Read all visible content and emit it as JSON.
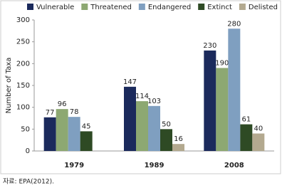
{
  "chart_data": {
    "type": "bar",
    "categories": [
      "1979",
      "1989",
      "2008"
    ],
    "series": [
      {
        "name": "Vulnerable",
        "color": "#1b2a5c",
        "values": [
          77,
          147,
          230
        ]
      },
      {
        "name": "Threatened",
        "color": "#8da872",
        "values": [
          96,
          114,
          190
        ]
      },
      {
        "name": "Endangered",
        "color": "#7f9fc0",
        "values": [
          78,
          103,
          280
        ]
      },
      {
        "name": "Extinct",
        "color": "#2e4a24",
        "values": [
          45,
          50,
          61
        ]
      },
      {
        "name": "Delisted",
        "color": "#b3a98f",
        "values": [
          null,
          16,
          40
        ]
      }
    ],
    "y_label": "Number of Taxa",
    "ylim": [
      0,
      300
    ],
    "yticks": [
      0,
      50,
      100,
      150,
      200,
      250,
      300
    ],
    "legend": "top",
    "source": "자료: EPA(2012)."
  }
}
